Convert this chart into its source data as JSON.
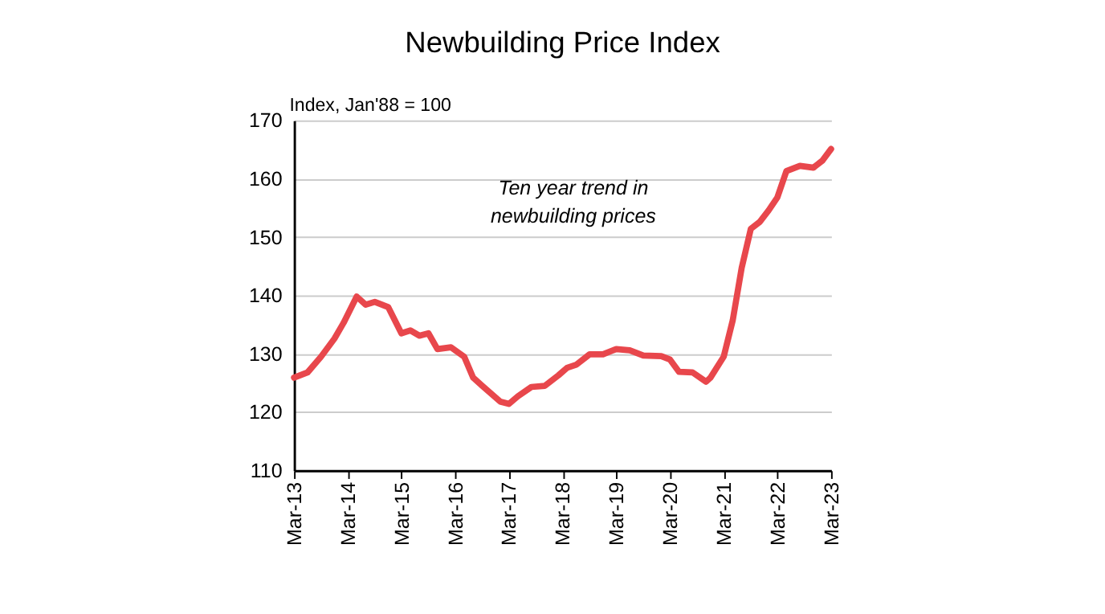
{
  "chart_data": {
    "type": "line",
    "title": "Newbuilding Price Index",
    "ylabel": "Index, Jan'88 = 100",
    "annotations": [
      "Ten year trend in\nnewbuilding prices"
    ],
    "x": [
      "2013-03",
      "2013-06",
      "2013-09",
      "2013-12",
      "2014-02",
      "2014-05",
      "2014-07",
      "2014-09",
      "2014-12",
      "2015-03",
      "2015-05",
      "2015-07",
      "2015-09",
      "2015-11",
      "2016-02",
      "2016-05",
      "2016-07",
      "2016-09",
      "2017-01",
      "2017-03",
      "2017-05",
      "2017-08",
      "2017-11",
      "2018-02",
      "2018-04",
      "2018-06",
      "2018-09",
      "2018-12",
      "2019-03",
      "2019-06",
      "2019-09",
      "2020-01",
      "2020-03",
      "2020-05",
      "2020-08",
      "2020-11",
      "2020-12",
      "2021-03",
      "2021-05",
      "2021-07",
      "2021-09",
      "2021-11",
      "2022-01",
      "2022-03",
      "2022-05",
      "2022-08",
      "2022-11",
      "2023-01",
      "2023-03"
    ],
    "series": [
      {
        "color": "#e8474c",
        "values": [
          125.9,
          126.8,
          129.5,
          132.6,
          135.3,
          139.8,
          138.4,
          138.9,
          138.0,
          133.5,
          134.0,
          133.1,
          133.5,
          130.8,
          131.1,
          129.5,
          125.9,
          124.5,
          121.8,
          121.4,
          122.7,
          124.3,
          124.5,
          126.3,
          127.6,
          128.1,
          129.9,
          129.9,
          130.8,
          130.6,
          129.7,
          129.6,
          129.0,
          126.9,
          126.8,
          125.2,
          125.9,
          129.5,
          135.7,
          144.7,
          151.4,
          152.6,
          154.6,
          156.8,
          161.3,
          162.2,
          161.9,
          163.1,
          165.1
        ]
      }
    ],
    "xlim": [
      "2013-03",
      "2023-03"
    ],
    "xticks": [
      {
        "value": "2013-03",
        "label": "Mar-13"
      },
      {
        "value": "2014-03",
        "label": "Mar-14"
      },
      {
        "value": "2015-03",
        "label": "Mar-15"
      },
      {
        "value": "2016-03",
        "label": "Mar-16"
      },
      {
        "value": "2017-03",
        "label": "Mar-17"
      },
      {
        "value": "2018-03",
        "label": "Mar-18"
      },
      {
        "value": "2019-03",
        "label": "Mar-19"
      },
      {
        "value": "2020-03",
        "label": "Mar-20"
      },
      {
        "value": "2021-03",
        "label": "Mar-21"
      },
      {
        "value": "2022-03",
        "label": "Mar-22"
      },
      {
        "value": "2023-03",
        "label": "Mar-23"
      }
    ],
    "ylim": [
      110,
      170
    ],
    "yticks": [
      110,
      120,
      130,
      140,
      150,
      160,
      170
    ],
    "grid": "y",
    "marker": "none",
    "line_style": "solid"
  }
}
